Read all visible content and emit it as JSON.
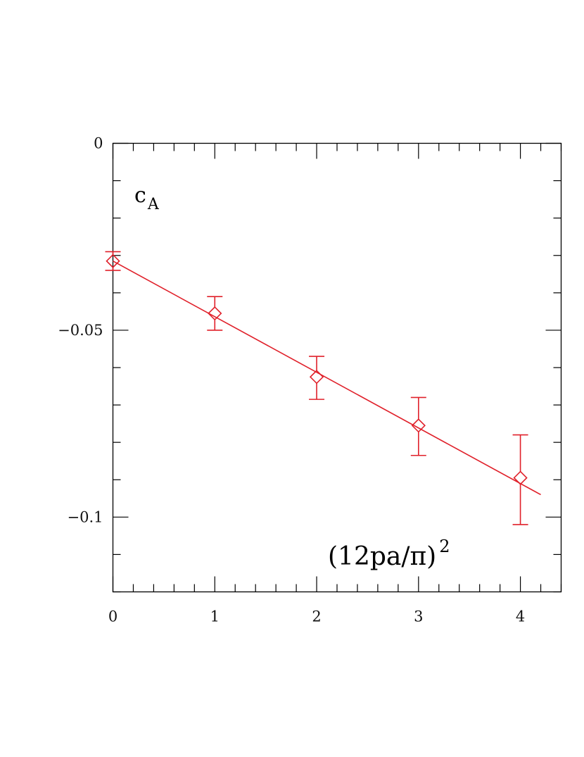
{
  "chart_data": {
    "type": "scatter",
    "title": "",
    "series_label": {
      "main": "c",
      "subscript": "A"
    },
    "xlabel": {
      "main": "(12pa/π)",
      "superscript": "2"
    },
    "ylabel": "",
    "xlim": [
      0,
      4.4
    ],
    "ylim": [
      -0.12,
      0
    ],
    "x_ticks": [
      0,
      1,
      2,
      3,
      4
    ],
    "x_tick_labels": [
      "0",
      "1",
      "2",
      "3",
      "4"
    ],
    "x_minor_step": 0.2,
    "y_ticks": [
      0,
      -0.05,
      -0.1
    ],
    "y_tick_labels": [
      "0",
      "−0.05",
      "−0.1"
    ],
    "y_minor_step": 0.01,
    "grid": false,
    "color": "#e0202a",
    "points": [
      {
        "x": 0,
        "y": -0.0315,
        "err_low": 0.0025,
        "err_high": 0.0025
      },
      {
        "x": 1,
        "y": -0.0455,
        "err_low": 0.0045,
        "err_high": 0.0045
      },
      {
        "x": 2,
        "y": -0.0625,
        "err_low": 0.006,
        "err_high": 0.0055
      },
      {
        "x": 3,
        "y": -0.0755,
        "err_low": 0.008,
        "err_high": 0.0075
      },
      {
        "x": 4,
        "y": -0.0895,
        "err_low": 0.0125,
        "err_high": 0.0115
      }
    ],
    "fit": {
      "x": [
        0,
        4.2
      ],
      "y": [
        -0.0315,
        -0.094
      ]
    }
  }
}
